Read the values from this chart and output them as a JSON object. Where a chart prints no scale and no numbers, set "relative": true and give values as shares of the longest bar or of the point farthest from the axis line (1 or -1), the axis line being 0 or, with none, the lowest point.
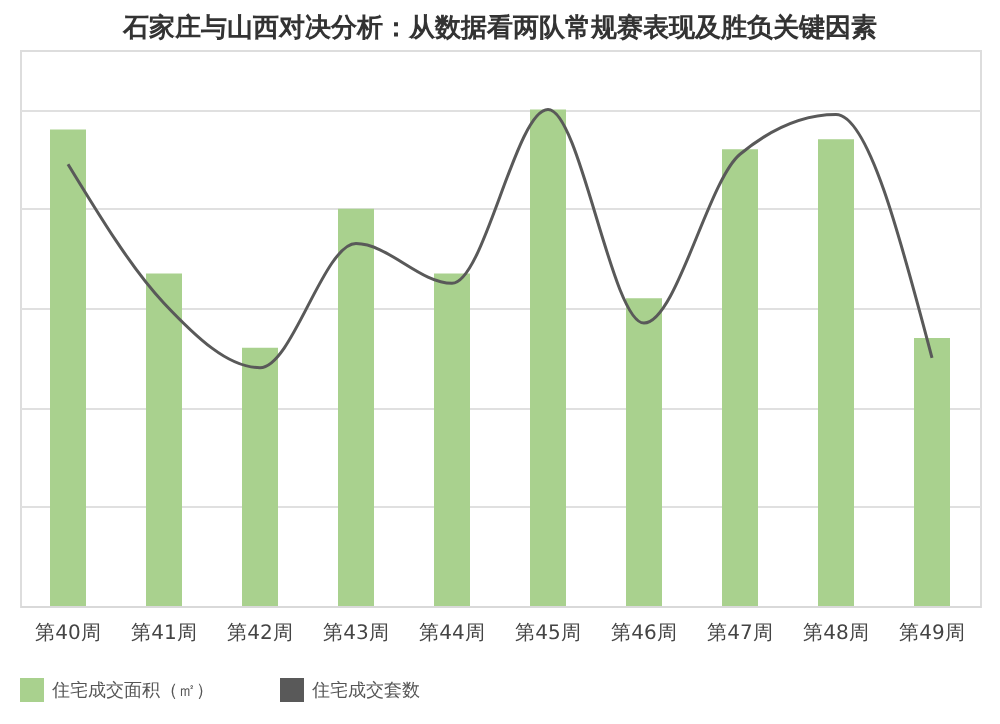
{
  "chart_data": {
    "type": "bar",
    "title": "石家庄与山西对决分析：从数据看两队常规赛表现及胜负关键因素",
    "relative": true,
    "grid": "y",
    "legend": "bottom",
    "categories": [
      "第40周",
      "第41周",
      "第42周",
      "第43周",
      "第44周",
      "第45周",
      "第46周",
      "第47周",
      "第48周",
      "第49周"
    ],
    "series": [
      {
        "name": "住宅成交面积（㎡）",
        "color": "#a9d18e",
        "values": [
          0.96,
          0.67,
          0.52,
          0.8,
          0.67,
          1.0,
          0.62,
          0.92,
          0.94,
          0.54
        ]
      },
      {
        "name": "住宅成交套数",
        "type": "line",
        "color": "#595959",
        "values": [
          0.89,
          0.61,
          0.48,
          0.73,
          0.65,
          1.0,
          0.57,
          0.91,
          0.99,
          0.5
        ]
      }
    ]
  }
}
